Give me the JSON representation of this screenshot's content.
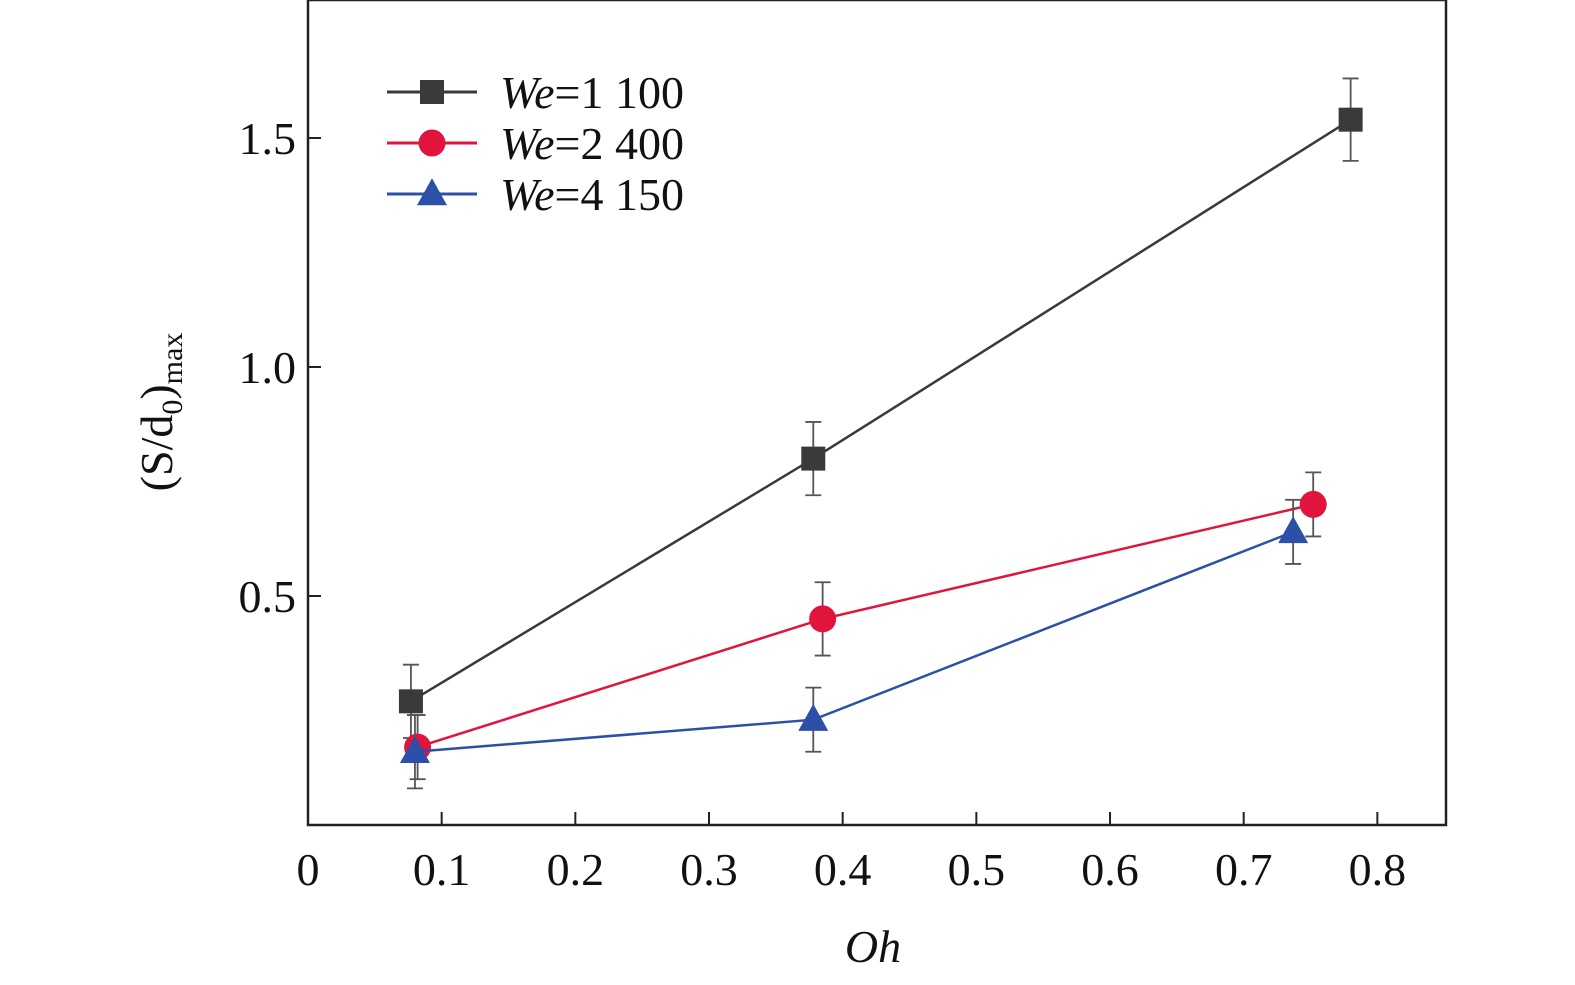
{
  "chart_data": {
    "type": "line",
    "xlabel": "Oh",
    "ylabel_main": "(S/d",
    "ylabel_sub0": "0",
    "ylabel_close": ")",
    "ylabel_sub_max": "max",
    "xlim": [
      0,
      0.85
    ],
    "ylim": [
      0,
      1.8
    ],
    "x_ticks": [
      {
        "value": 0,
        "label": "0"
      },
      {
        "value": 0.1,
        "label": "0.1"
      },
      {
        "value": 0.2,
        "label": "0.2"
      },
      {
        "value": 0.3,
        "label": "0.3"
      },
      {
        "value": 0.4,
        "label": "0.4"
      },
      {
        "value": 0.5,
        "label": "0.5"
      },
      {
        "value": 0.6,
        "label": "0.6"
      },
      {
        "value": 0.7,
        "label": "0.7"
      },
      {
        "value": 0.8,
        "label": "0.8"
      }
    ],
    "y_ticks": [
      {
        "value": 0.5,
        "label": "0.5"
      },
      {
        "value": 1.0,
        "label": "1.0"
      },
      {
        "value": 1.5,
        "label": "1.5"
      }
    ],
    "legend_position": "top-left",
    "series": [
      {
        "name_prefix": "We",
        "name_suffix": "=1 100",
        "color": "#3a3a3a",
        "marker": "square",
        "points": [
          {
            "x": 0.077,
            "y": 0.27,
            "err": 0.08
          },
          {
            "x": 0.378,
            "y": 0.8,
            "err": 0.08
          },
          {
            "x": 0.78,
            "y": 1.54,
            "err": 0.09
          }
        ]
      },
      {
        "name_prefix": "We",
        "name_suffix": "=2 400",
        "color": "#e0143c",
        "marker": "circle",
        "points": [
          {
            "x": 0.082,
            "y": 0.17,
            "err": 0.07
          },
          {
            "x": 0.385,
            "y": 0.45,
            "err": 0.08
          },
          {
            "x": 0.752,
            "y": 0.7,
            "err": 0.07
          }
        ]
      },
      {
        "name_prefix": "We",
        "name_suffix": "=4 150",
        "color": "#2c4fa8",
        "marker": "triangle",
        "points": [
          {
            "x": 0.08,
            "y": 0.16,
            "err": 0.08
          },
          {
            "x": 0.378,
            "y": 0.23,
            "err": 0.07
          },
          {
            "x": 0.737,
            "y": 0.64,
            "err": 0.07
          }
        ]
      }
    ]
  }
}
